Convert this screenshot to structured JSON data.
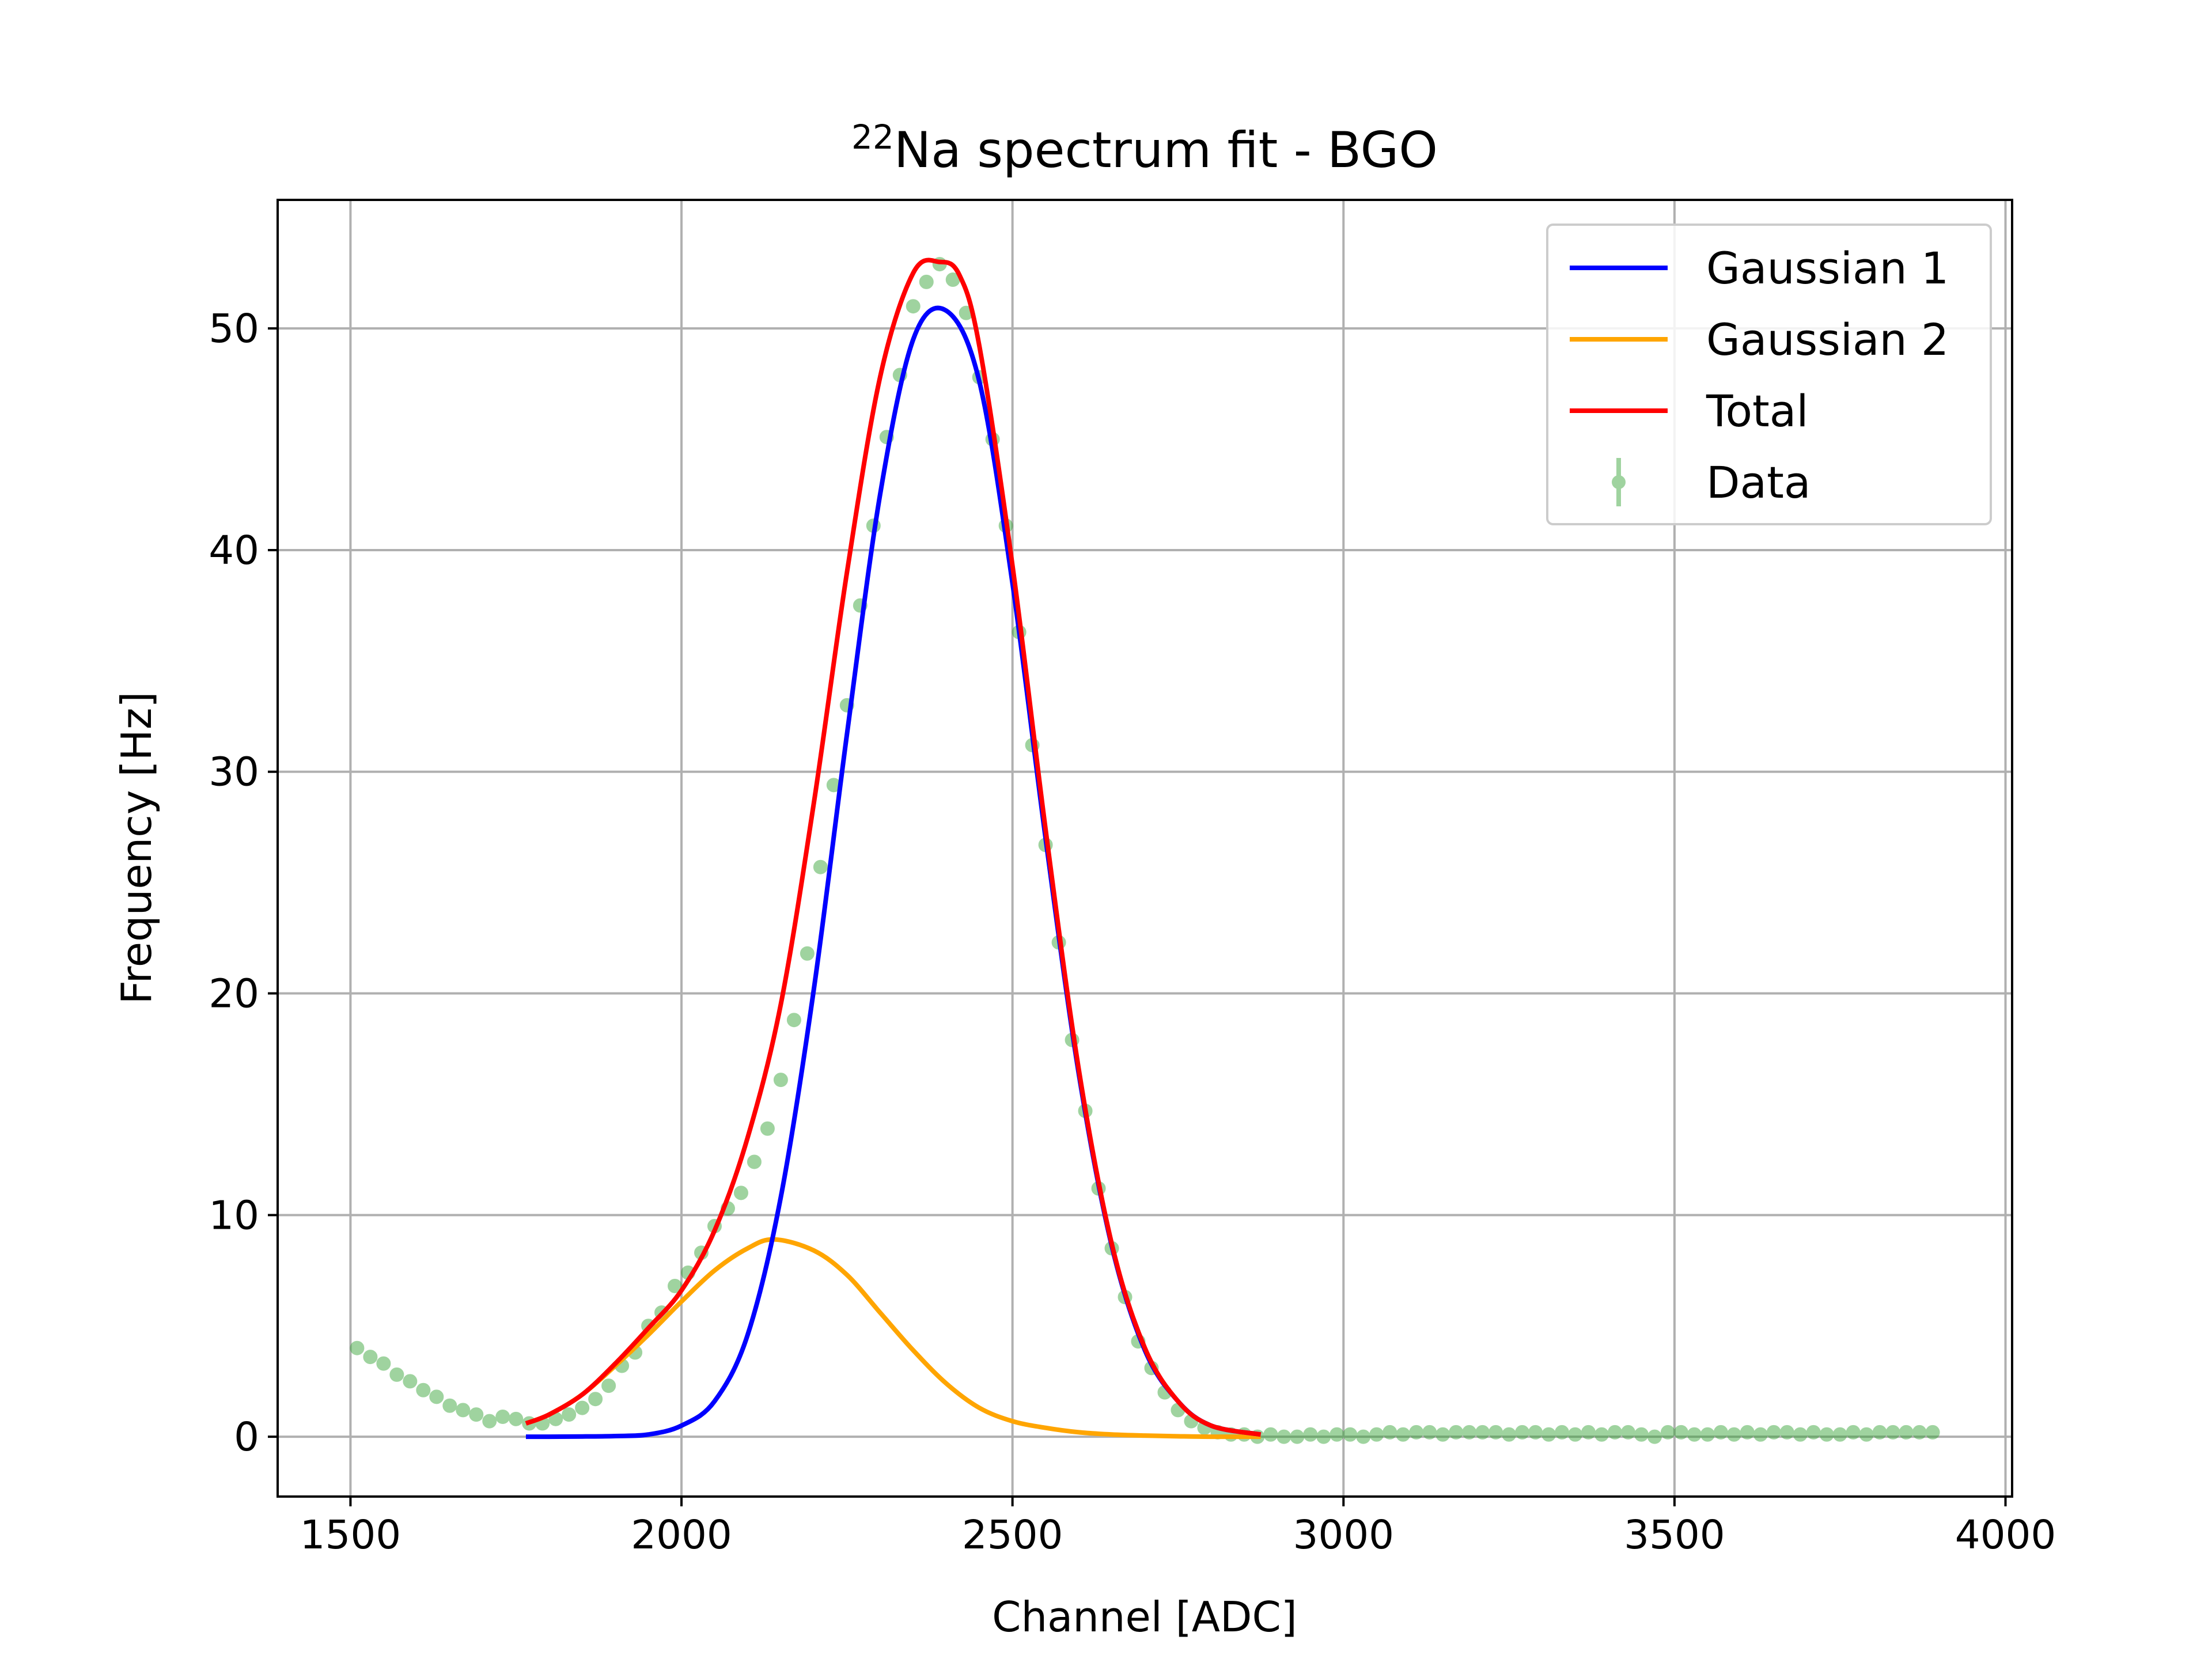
{
  "chart_data": {
    "type": "line",
    "title_sup": "22",
    "title": "Na spectrum fit - BGO",
    "xlabel": "Channel [ADC]",
    "ylabel": "Frequency [Hz]",
    "xlim": [
      1390,
      4010
    ],
    "ylim": [
      -2.7,
      55.8
    ],
    "xticks": [
      1500,
      2000,
      2500,
      3000,
      3500,
      4000
    ],
    "yticks": [
      0,
      10,
      20,
      30,
      40,
      50
    ],
    "grid": true,
    "legend_position": "top-right",
    "colors": {
      "gaussian1": "#0000ff",
      "gaussian2": "#ffa500",
      "total": "#ff0000",
      "data": "#2ca02c",
      "grid": "#b0b0b0"
    },
    "legend": [
      {
        "label": "Gaussian 1",
        "kind": "line",
        "color": "#0000ff"
      },
      {
        "label": "Gaussian 2",
        "kind": "line",
        "color": "#ffa500"
      },
      {
        "label": "Total",
        "kind": "line",
        "color": "#ff0000"
      },
      {
        "label": "Data",
        "kind": "errorbar",
        "color": "#2ca02c"
      }
    ],
    "series": [
      {
        "name": "Gaussian 1",
        "type": "line",
        "x": [
          1765,
          1800,
          1850,
          1900,
          1950,
          2000,
          2050,
          2100,
          2150,
          2200,
          2250,
          2300,
          2350,
          2400,
          2450,
          2500,
          2550,
          2600,
          2650,
          2700,
          2750,
          2800,
          2875
        ],
        "y": [
          0.0,
          0.0,
          0.01,
          0.03,
          0.1,
          0.5,
          1.6,
          4.6,
          10.8,
          20.2,
          31.7,
          42.5,
          49.5,
          50.8,
          47.6,
          38.5,
          27.0,
          16.4,
          8.6,
          3.9,
          1.6,
          0.5,
          0.1
        ]
      },
      {
        "name": "Gaussian 2",
        "type": "line",
        "x": [
          1765,
          1800,
          1850,
          1900,
          1950,
          2000,
          2050,
          2100,
          2140,
          2200,
          2250,
          2300,
          2350,
          2400,
          2450,
          2500,
          2550,
          2600,
          2650,
          2700,
          2750,
          2800,
          2875
        ],
        "y": [
          0.6,
          1.0,
          1.9,
          3.2,
          4.6,
          6.1,
          7.5,
          8.5,
          8.9,
          8.4,
          7.3,
          5.6,
          3.9,
          2.4,
          1.3,
          0.7,
          0.4,
          0.2,
          0.1,
          0.05,
          0.02,
          0.0,
          0.0
        ]
      },
      {
        "name": "Total",
        "type": "line",
        "x": [
          1765,
          1800,
          1850,
          1900,
          1950,
          2000,
          2050,
          2100,
          2150,
          2200,
          2250,
          2300,
          2350,
          2390,
          2420,
          2450,
          2500,
          2550,
          2600,
          2650,
          2700,
          2750,
          2800,
          2875
        ],
        "y": [
          0.6,
          1.0,
          1.9,
          3.3,
          4.9,
          6.6,
          9.3,
          13.5,
          19.5,
          28.6,
          39.0,
          47.8,
          52.5,
          53.0,
          52.4,
          49.2,
          39.3,
          27.4,
          16.6,
          8.7,
          4.0,
          1.6,
          0.5,
          0.1
        ]
      },
      {
        "name": "Data",
        "type": "scatter",
        "x": [
          1510,
          1530,
          1550,
          1570,
          1590,
          1610,
          1630,
          1650,
          1670,
          1690,
          1710,
          1730,
          1750,
          1770,
          1790,
          1810,
          1830,
          1850,
          1870,
          1890,
          1910,
          1930,
          1950,
          1970,
          1990,
          2010,
          2030,
          2050,
          2070,
          2090,
          2110,
          2130,
          2150,
          2170,
          2190,
          2210,
          2230,
          2250,
          2270,
          2290,
          2310,
          2330,
          2350,
          2370,
          2390,
          2410,
          2430,
          2450,
          2470,
          2490,
          2510,
          2530,
          2550,
          2570,
          2590,
          2610,
          2630,
          2650,
          2670,
          2690,
          2710,
          2730,
          2750,
          2770,
          2790,
          2810,
          2830,
          2850,
          2870,
          2890,
          2910,
          2930,
          2950,
          2970,
          2990,
          3010,
          3030,
          3050,
          3070,
          3090,
          3110,
          3130,
          3150,
          3170,
          3190,
          3210,
          3230,
          3250,
          3270,
          3290,
          3310,
          3330,
          3350,
          3370,
          3390,
          3410,
          3430,
          3450,
          3470,
          3490,
          3510,
          3530,
          3550,
          3570,
          3590,
          3610,
          3630,
          3650,
          3670,
          3690,
          3710,
          3730,
          3750,
          3770,
          3790,
          3810,
          3830,
          3850,
          3870,
          3890
        ],
        "y": [
          4.0,
          3.6,
          3.3,
          2.8,
          2.5,
          2.1,
          1.8,
          1.4,
          1.2,
          1.0,
          0.7,
          0.9,
          0.8,
          0.6,
          0.6,
          0.8,
          1.0,
          1.3,
          1.7,
          2.3,
          3.2,
          3.8,
          5.0,
          5.6,
          6.8,
          7.4,
          8.3,
          9.5,
          10.3,
          11.0,
          12.4,
          13.9,
          16.1,
          18.8,
          21.8,
          25.7,
          29.4,
          33.0,
          37.5,
          41.1,
          45.1,
          47.9,
          51.0,
          52.1,
          52.9,
          52.2,
          50.7,
          47.8,
          45.0,
          41.1,
          36.3,
          31.2,
          26.7,
          22.3,
          17.9,
          14.7,
          11.2,
          8.5,
          6.3,
          4.3,
          3.1,
          2.0,
          1.2,
          0.7,
          0.4,
          0.2,
          0.1,
          0.1,
          0.0,
          0.1,
          0.0,
          0.0,
          0.1,
          0.0,
          0.1,
          0.1,
          0.0,
          0.1,
          0.2,
          0.1,
          0.2,
          0.2,
          0.1,
          0.2,
          0.2,
          0.2,
          0.2,
          0.1,
          0.2,
          0.2,
          0.1,
          0.2,
          0.1,
          0.2,
          0.1,
          0.2,
          0.2,
          0.1,
          0.0,
          0.2,
          0.2,
          0.1,
          0.1,
          0.2,
          0.1,
          0.2,
          0.1,
          0.2,
          0.2,
          0.1,
          0.2,
          0.1,
          0.1,
          0.2,
          0.1,
          0.2,
          0.2,
          0.2,
          0.2,
          0.2
        ]
      }
    ]
  }
}
